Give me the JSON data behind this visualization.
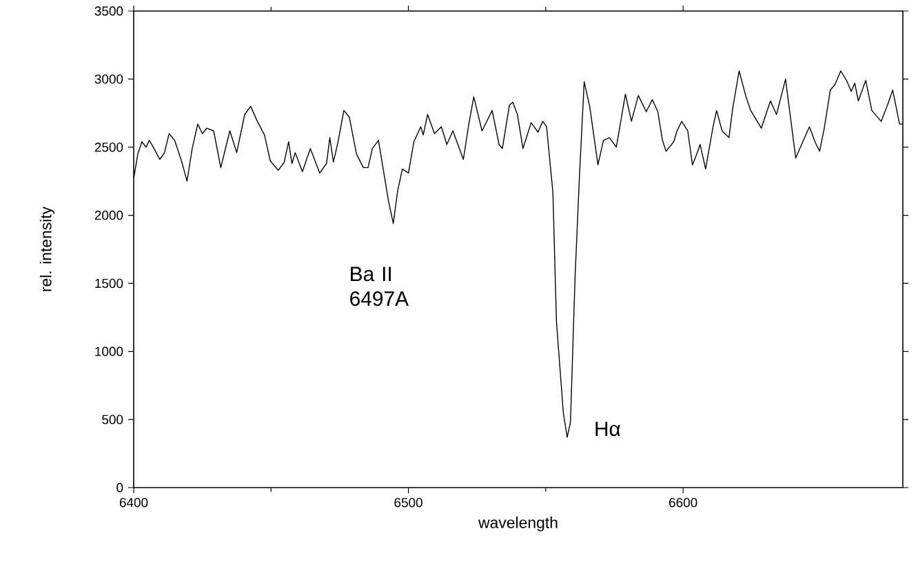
{
  "chart_data": {
    "type": "line",
    "xlabel": "wavelength",
    "ylabel": "rel. intensity",
    "xlim": [
      6400,
      6680
    ],
    "ylim": [
      0,
      3500
    ],
    "xticks": [
      6400,
      6500,
      6600
    ],
    "yticks": [
      0,
      500,
      1000,
      1500,
      2000,
      2500,
      3000,
      3500
    ],
    "grid": false,
    "marker": "none",
    "line_style": "solid",
    "annotations": [
      {
        "text": "Ba II 6497A",
        "x": 6494.5,
        "y": 1940
      },
      {
        "text": "Hα",
        "x": 6557.8,
        "y": 370
      }
    ],
    "series": [
      {
        "color": "#000000",
        "x": [
          6400,
          6401.5,
          6403,
          6404.5,
          6405.7,
          6407.4,
          6409.5,
          6411.2,
          6412.9,
          6414.9,
          6417.4,
          6419.4,
          6421.3,
          6423.3,
          6425,
          6426.6,
          6429.1,
          6431.7,
          6435,
          6437.5,
          6440.4,
          6442.6,
          6445,
          6447.6,
          6449.7,
          6452.6,
          6454.8,
          6456.4,
          6457.6,
          6458.8,
          6461.4,
          6464.3,
          6467.7,
          6470.2,
          6471.4,
          6472.7,
          6474.4,
          6476.5,
          6478.5,
          6481.1,
          6483.6,
          6485.3,
          6486.9,
          6489.1,
          6492.8,
          6494.5,
          6496.1,
          6497.8,
          6500,
          6502,
          6504.5,
          6505.4,
          6507,
          6509.5,
          6512,
          6514,
          6516.2,
          6520,
          6522,
          6523.8,
          6526.8,
          6530.5,
          6533,
          6534.2,
          6536.8,
          6538,
          6539.7,
          6541.7,
          6544.7,
          6547.2,
          6548.9,
          6550.3,
          6552.6,
          6553.9,
          6556.4,
          6557.8,
          6559,
          6560.7,
          6562.3,
          6564,
          6566,
          6569,
          6571,
          6573.2,
          6575.7,
          6577.4,
          6579,
          6581.2,
          6583.7,
          6586.6,
          6588.8,
          6590.8,
          6592.5,
          6593.8,
          6596.6,
          6597.8,
          6599.5,
          6601.7,
          6603.4,
          6605,
          6606.2,
          6608.2,
          6610.9,
          6612.2,
          6614.2,
          6616.7,
          6618.1,
          6620.4,
          6622.9,
          6624.6,
          6628.5,
          6631.8,
          6634,
          6637.3,
          6641,
          6642.7,
          6646,
          6648,
          6649.7,
          6651.4,
          6653.6,
          6655.3,
          6657.4,
          6659.5,
          6661.2,
          6662.5,
          6663.8,
          6666.5,
          6668.7,
          6672.1,
          6674.6,
          6676.3,
          6678.8,
          6680
        ],
        "values": [
          2270,
          2450,
          2540,
          2500,
          2550,
          2490,
          2410,
          2460,
          2600,
          2550,
          2400,
          2250,
          2490,
          2670,
          2600,
          2640,
          2620,
          2350,
          2620,
          2460,
          2740,
          2800,
          2690,
          2590,
          2400,
          2330,
          2390,
          2540,
          2380,
          2460,
          2320,
          2490,
          2310,
          2380,
          2570,
          2390,
          2540,
          2770,
          2720,
          2450,
          2350,
          2350,
          2490,
          2550,
          2100,
          1940,
          2180,
          2340,
          2310,
          2540,
          2650,
          2590,
          2740,
          2600,
          2650,
          2520,
          2620,
          2410,
          2670,
          2870,
          2620,
          2770,
          2520,
          2490,
          2810,
          2830,
          2740,
          2490,
          2680,
          2610,
          2690,
          2650,
          2170,
          1220,
          550,
          370,
          480,
          1560,
          2300,
          2980,
          2800,
          2370,
          2550,
          2570,
          2500,
          2700,
          2890,
          2690,
          2880,
          2760,
          2850,
          2760,
          2550,
          2470,
          2540,
          2620,
          2690,
          2620,
          2370,
          2450,
          2520,
          2340,
          2650,
          2770,
          2620,
          2570,
          2790,
          3060,
          2870,
          2770,
          2640,
          2840,
          2740,
          3000,
          2420,
          2500,
          2650,
          2540,
          2470,
          2640,
          2920,
          2960,
          3060,
          2990,
          2910,
          2970,
          2840,
          2990,
          2770,
          2690,
          2820,
          2920,
          2670,
          2670
        ]
      }
    ]
  }
}
